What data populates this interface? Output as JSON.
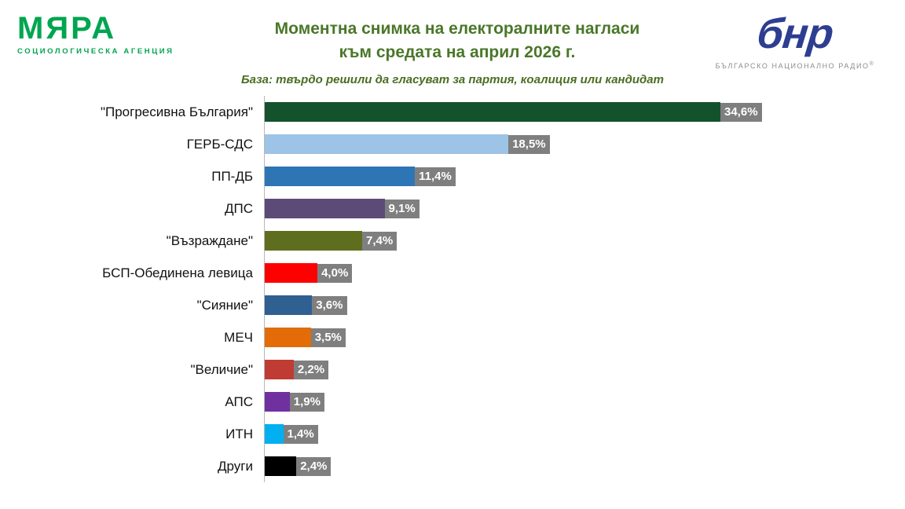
{
  "logos": {
    "myara": {
      "name": "МЯРА",
      "subtitle": "СОЦИОЛОГИЧЕСКА АГЕНЦИЯ",
      "color": "#00a550"
    },
    "bnr": {
      "mark": "бнр",
      "subtitle": "БЪЛГАРСКО НАЦИОНАЛНО РАДИО",
      "reg_mark": "®",
      "color": "#2d3e91"
    }
  },
  "chart_data": {
    "type": "bar",
    "orientation": "horizontal",
    "title_line1": "Моментна снимка на електоралните нагласи",
    "title_line2": "към средата на април 2026 г.",
    "base_label": "База:",
    "base_text": "твърдо решили да гласуват за партия, коалиция или кандидат",
    "categories": [
      "\"Прогресивна България\"",
      "ГЕРБ-СДС",
      "ПП-ДБ",
      "ДПС",
      "\"Възраждане\"",
      "БСП-Обединена левица",
      "\"Сияние\"",
      "МЕЧ",
      "\"Величие\"",
      "АПС",
      "ИТН",
      "Други"
    ],
    "values": [
      34.6,
      18.5,
      11.4,
      9.1,
      7.4,
      4.0,
      3.6,
      3.5,
      2.2,
      1.9,
      1.4,
      2.4
    ],
    "value_labels": [
      "34,6%",
      "18,5%",
      "11,4%",
      "9,1%",
      "7,4%",
      "4,0%",
      "3,6%",
      "3,5%",
      "2,2%",
      "1,9%",
      "1,4%",
      "2,4%"
    ],
    "bar_colors": [
      "#14512d",
      "#9dc3e6",
      "#2e75b6",
      "#5c4b77",
      "#5e6e1e",
      "#ff0000",
      "#305f92",
      "#e36c09",
      "#c03b33",
      "#7030a0",
      "#00b0f0",
      "#000000"
    ],
    "xlim": [
      0,
      36
    ],
    "grid": false,
    "legend": false,
    "value_label_bg": "#7f7f7f",
    "value_label_color": "#ffffff",
    "title_color": "#4a7729",
    "xlabel": "",
    "ylabel": ""
  }
}
